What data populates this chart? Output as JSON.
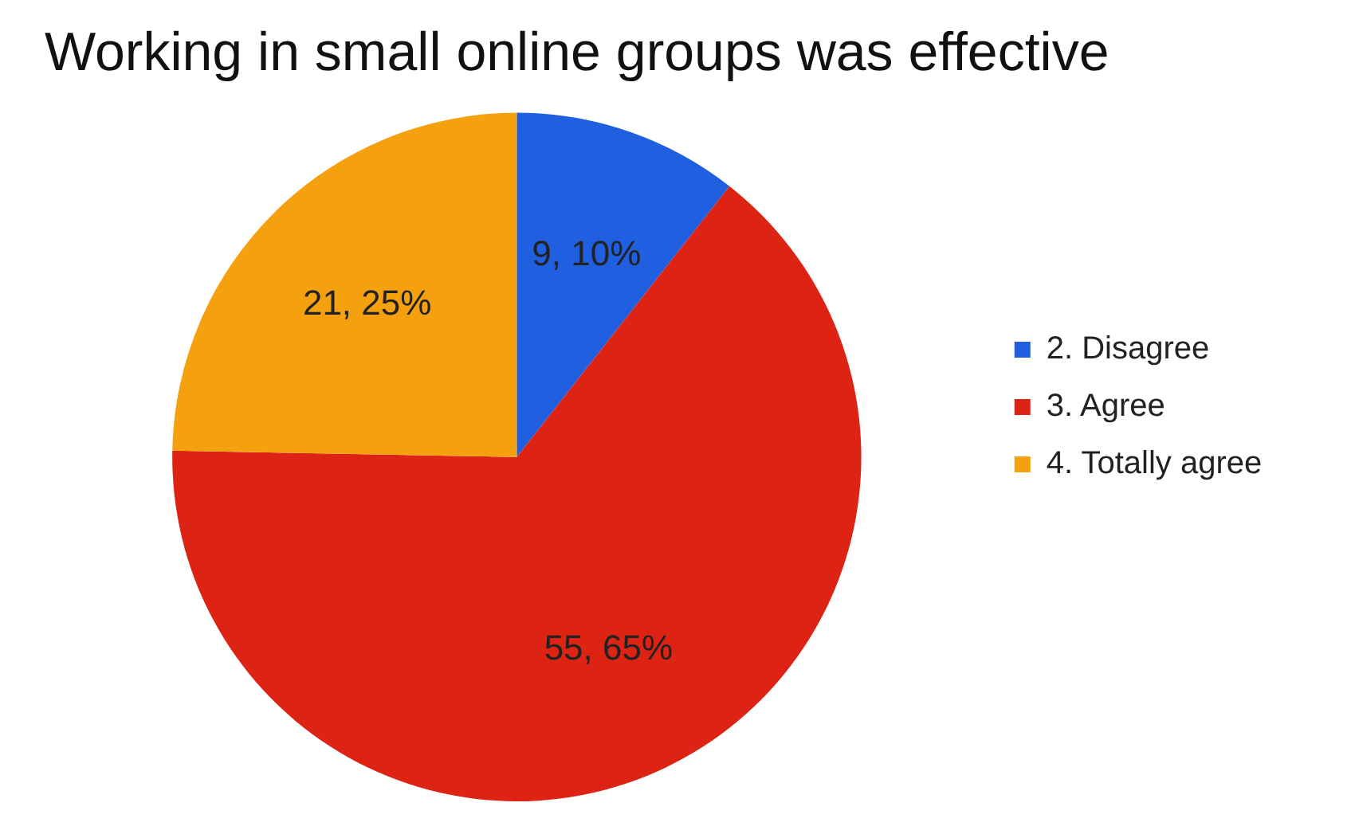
{
  "chart_data": {
    "type": "pie",
    "title": "Working in small online groups was effective",
    "categories": [
      "2. Disagree",
      "3. Agree",
      "4. Totally agree"
    ],
    "values": [
      9,
      55,
      21
    ],
    "value_labels": [
      "9, 10%",
      "55, 65%",
      "21, 25%"
    ],
    "colors": [
      "#1f5fe0",
      "#dc2314",
      "#f5a00e"
    ],
    "legend": "right"
  }
}
